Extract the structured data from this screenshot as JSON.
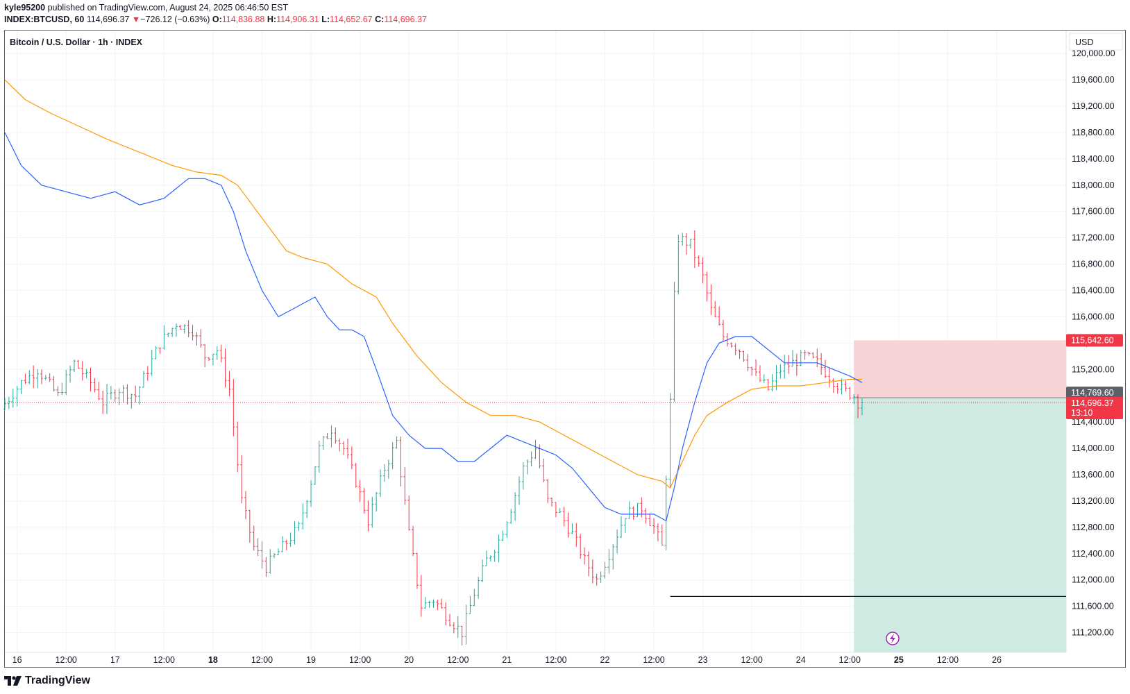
{
  "header": {
    "author": "kyle95200",
    "published_text": "published on TradingView.com, August 24, 2025 06:46:50 EST",
    "symbol": "INDEX:BTCUSD, 60",
    "last": "114,696.37",
    "arrow": "▼",
    "change": "−726.12 (−0.63%)",
    "o_label": "O:",
    "o_value": "114,836.88",
    "h_label": "H:",
    "h_value": "114,906.31",
    "l_label": "L:",
    "l_value": "114,652.67",
    "c_label": "C:",
    "c_value": "114,696.37"
  },
  "chart_title": "Bitcoin / U.S. Dollar · 1h · INDEX",
  "currency": "USD",
  "footer_logo": "TradingView",
  "price_tags": {
    "stop": "115,642.60",
    "entry": "114,769.60",
    "current": "114,696.37",
    "countdown": "13:10"
  },
  "colors": {
    "up": "#26a69a",
    "down": "#f23645",
    "ma_fast": "#2962ff",
    "ma_slow": "#ff9800",
    "risk_fill": "#f8d3d6",
    "reward_fill": "#cfe9e3"
  },
  "chart_data": {
    "type": "candlestick",
    "title": "Bitcoin / U.S. Dollar · 1h · INDEX",
    "ylim": [
      110900,
      120350
    ],
    "y_ticks": [
      111200,
      111600,
      112000,
      112400,
      112800,
      113200,
      113600,
      114000,
      114400,
      114800,
      115200,
      115600,
      116000,
      116400,
      116800,
      117200,
      117600,
      118000,
      118400,
      118800,
      119200,
      119600,
      120000
    ],
    "y_tick_labels": [
      "111,200.00",
      "111,600.00",
      "112,000.00",
      "112,400.00",
      "112,800.00",
      "113,200.00",
      "113,600.00",
      "114,000.00",
      "114,400.00",
      "114,800.00",
      "115,200.00",
      "115,600.00",
      "116,000.00",
      "116,400.00",
      "116,800.00",
      "117,200.00",
      "117,600.00",
      "118,000.00",
      "118,400.00",
      "118,800.00",
      "119,200.00",
      "119,600.00",
      "120,000.00"
    ],
    "x_tick_labels": [
      "16",
      "12:00",
      "17",
      "12:00",
      "18",
      "12:00",
      "19",
      "12:00",
      "20",
      "12:00",
      "21",
      "12:00",
      "22",
      "12:00",
      "23",
      "12:00",
      "24",
      "12:00",
      "25",
      "12:00",
      "26"
    ],
    "x_tick_bold": [
      "18",
      "25"
    ],
    "x_tick_hours": [
      0,
      12,
      24,
      36,
      48,
      60,
      72,
      84,
      96,
      108,
      120,
      132,
      144,
      156,
      168,
      180,
      192,
      204,
      216,
      228,
      240
    ],
    "x_range_hours": [
      -3,
      257
    ],
    "candle_anchors": [
      {
        "h": -3,
        "p": 114600
      },
      {
        "h": 2,
        "p": 115000
      },
      {
        "h": 6,
        "p": 115200
      },
      {
        "h": 11,
        "p": 114800
      },
      {
        "h": 15,
        "p": 115300
      },
      {
        "h": 19,
        "p": 115000
      },
      {
        "h": 22,
        "p": 114700
      },
      {
        "h": 26,
        "p": 114900
      },
      {
        "h": 30,
        "p": 114800
      },
      {
        "h": 33,
        "p": 115200
      },
      {
        "h": 36,
        "p": 115600
      },
      {
        "h": 40,
        "p": 115900
      },
      {
        "h": 44,
        "p": 115800
      },
      {
        "h": 47,
        "p": 115400
      },
      {
        "h": 50,
        "p": 115500
      },
      {
        "h": 53,
        "p": 114900
      },
      {
        "h": 56,
        "p": 113200
      },
      {
        "h": 59,
        "p": 112500
      },
      {
        "h": 62,
        "p": 112200
      },
      {
        "h": 66,
        "p": 112500
      },
      {
        "h": 70,
        "p": 112800
      },
      {
        "h": 73,
        "p": 113500
      },
      {
        "h": 75,
        "p": 114000
      },
      {
        "h": 78,
        "p": 114300
      },
      {
        "h": 81,
        "p": 114000
      },
      {
        "h": 84,
        "p": 113500
      },
      {
        "h": 87,
        "p": 112900
      },
      {
        "h": 91,
        "p": 113700
      },
      {
        "h": 94,
        "p": 114100
      },
      {
        "h": 97,
        "p": 112700
      },
      {
        "h": 100,
        "p": 111600
      },
      {
        "h": 103,
        "p": 111700
      },
      {
        "h": 107,
        "p": 111400
      },
      {
        "h": 110,
        "p": 111200
      },
      {
        "h": 113,
        "p": 111800
      },
      {
        "h": 116,
        "p": 112300
      },
      {
        "h": 119,
        "p": 112600
      },
      {
        "h": 122,
        "p": 113100
      },
      {
        "h": 125,
        "p": 113700
      },
      {
        "h": 128,
        "p": 114000
      },
      {
        "h": 131,
        "p": 113200
      },
      {
        "h": 134,
        "p": 113000
      },
      {
        "h": 137,
        "p": 112700
      },
      {
        "h": 140,
        "p": 112300
      },
      {
        "h": 143,
        "p": 112000
      },
      {
        "h": 146,
        "p": 112400
      },
      {
        "h": 150,
        "p": 113000
      },
      {
        "h": 154,
        "p": 113100
      },
      {
        "h": 157,
        "p": 112800
      },
      {
        "h": 159,
        "p": 112500
      },
      {
        "h": 161,
        "p": 114700
      },
      {
        "h": 162,
        "p": 116300
      },
      {
        "h": 163,
        "p": 117200
      },
      {
        "h": 166,
        "p": 117100
      },
      {
        "h": 169,
        "p": 116600
      },
      {
        "h": 171,
        "p": 116100
      },
      {
        "h": 174,
        "p": 115700
      },
      {
        "h": 178,
        "p": 115500
      },
      {
        "h": 182,
        "p": 115100
      },
      {
        "h": 185,
        "p": 114900
      },
      {
        "h": 188,
        "p": 115200
      },
      {
        "h": 191,
        "p": 115300
      },
      {
        "h": 194,
        "p": 115400
      },
      {
        "h": 197,
        "p": 115300
      },
      {
        "h": 200,
        "p": 115100
      },
      {
        "h": 203,
        "p": 114900
      },
      {
        "h": 206,
        "p": 114800
      },
      {
        "h": 207,
        "p": 114700
      }
    ],
    "ma_fast": [
      {
        "h": -3,
        "p": 118800
      },
      {
        "h": 1,
        "p": 118300
      },
      {
        "h": 6,
        "p": 118000
      },
      {
        "h": 12,
        "p": 117900
      },
      {
        "h": 18,
        "p": 117800
      },
      {
        "h": 24,
        "p": 117900
      },
      {
        "h": 30,
        "p": 117700
      },
      {
        "h": 36,
        "p": 117800
      },
      {
        "h": 42,
        "p": 118100
      },
      {
        "h": 46,
        "p": 118100
      },
      {
        "h": 50,
        "p": 118000
      },
      {
        "h": 53,
        "p": 117600
      },
      {
        "h": 56,
        "p": 117000
      },
      {
        "h": 60,
        "p": 116400
      },
      {
        "h": 64,
        "p": 116000
      },
      {
        "h": 67,
        "p": 116100
      },
      {
        "h": 70,
        "p": 116200
      },
      {
        "h": 73,
        "p": 116300
      },
      {
        "h": 76,
        "p": 116000
      },
      {
        "h": 79,
        "p": 115800
      },
      {
        "h": 82,
        "p": 115800
      },
      {
        "h": 85,
        "p": 115700
      },
      {
        "h": 88,
        "p": 115200
      },
      {
        "h": 92,
        "p": 114500
      },
      {
        "h": 96,
        "p": 114200
      },
      {
        "h": 100,
        "p": 114000
      },
      {
        "h": 104,
        "p": 114000
      },
      {
        "h": 108,
        "p": 113800
      },
      {
        "h": 112,
        "p": 113800
      },
      {
        "h": 116,
        "p": 114000
      },
      {
        "h": 120,
        "p": 114200
      },
      {
        "h": 124,
        "p": 114100
      },
      {
        "h": 128,
        "p": 114000
      },
      {
        "h": 132,
        "p": 113900
      },
      {
        "h": 136,
        "p": 113700
      },
      {
        "h": 140,
        "p": 113400
      },
      {
        "h": 144,
        "p": 113100
      },
      {
        "h": 148,
        "p": 113000
      },
      {
        "h": 152,
        "p": 113000
      },
      {
        "h": 156,
        "p": 113000
      },
      {
        "h": 159,
        "p": 112900
      },
      {
        "h": 161,
        "p": 113400
      },
      {
        "h": 163,
        "p": 114000
      },
      {
        "h": 166,
        "p": 114700
      },
      {
        "h": 169,
        "p": 115300
      },
      {
        "h": 172,
        "p": 115600
      },
      {
        "h": 176,
        "p": 115700
      },
      {
        "h": 180,
        "p": 115700
      },
      {
        "h": 184,
        "p": 115500
      },
      {
        "h": 188,
        "p": 115300
      },
      {
        "h": 192,
        "p": 115300
      },
      {
        "h": 196,
        "p": 115300
      },
      {
        "h": 200,
        "p": 115200
      },
      {
        "h": 204,
        "p": 115100
      },
      {
        "h": 207,
        "p": 115000
      }
    ],
    "ma_slow": [
      {
        "h": -3,
        "p": 119600
      },
      {
        "h": 2,
        "p": 119300
      },
      {
        "h": 8,
        "p": 119100
      },
      {
        "h": 15,
        "p": 118900
      },
      {
        "h": 22,
        "p": 118700
      },
      {
        "h": 30,
        "p": 118500
      },
      {
        "h": 38,
        "p": 118300
      },
      {
        "h": 44,
        "p": 118200
      },
      {
        "h": 50,
        "p": 118150
      },
      {
        "h": 54,
        "p": 118000
      },
      {
        "h": 60,
        "p": 117500
      },
      {
        "h": 66,
        "p": 117000
      },
      {
        "h": 70,
        "p": 116900
      },
      {
        "h": 76,
        "p": 116800
      },
      {
        "h": 82,
        "p": 116500
      },
      {
        "h": 88,
        "p": 116300
      },
      {
        "h": 92,
        "p": 115900
      },
      {
        "h": 98,
        "p": 115400
      },
      {
        "h": 104,
        "p": 115000
      },
      {
        "h": 110,
        "p": 114700
      },
      {
        "h": 116,
        "p": 114500
      },
      {
        "h": 122,
        "p": 114500
      },
      {
        "h": 128,
        "p": 114400
      },
      {
        "h": 134,
        "p": 114200
      },
      {
        "h": 140,
        "p": 114000
      },
      {
        "h": 146,
        "p": 113800
      },
      {
        "h": 152,
        "p": 113600
      },
      {
        "h": 158,
        "p": 113500
      },
      {
        "h": 160,
        "p": 113400
      },
      {
        "h": 163,
        "p": 113800
      },
      {
        "h": 166,
        "p": 114200
      },
      {
        "h": 169,
        "p": 114500
      },
      {
        "h": 174,
        "p": 114700
      },
      {
        "h": 180,
        "p": 114900
      },
      {
        "h": 186,
        "p": 114950
      },
      {
        "h": 192,
        "p": 114950
      },
      {
        "h": 198,
        "p": 115000
      },
      {
        "h": 204,
        "p": 115050
      },
      {
        "h": 207,
        "p": 115050
      }
    ],
    "support_line": {
      "price": 111750,
      "from_h": 160,
      "to_h": 257
    },
    "position": {
      "from_h": 205,
      "to_h": 257,
      "stop": 115642.6,
      "entry": 114769.6,
      "target": 110900
    },
    "current_price": 114696.37
  }
}
